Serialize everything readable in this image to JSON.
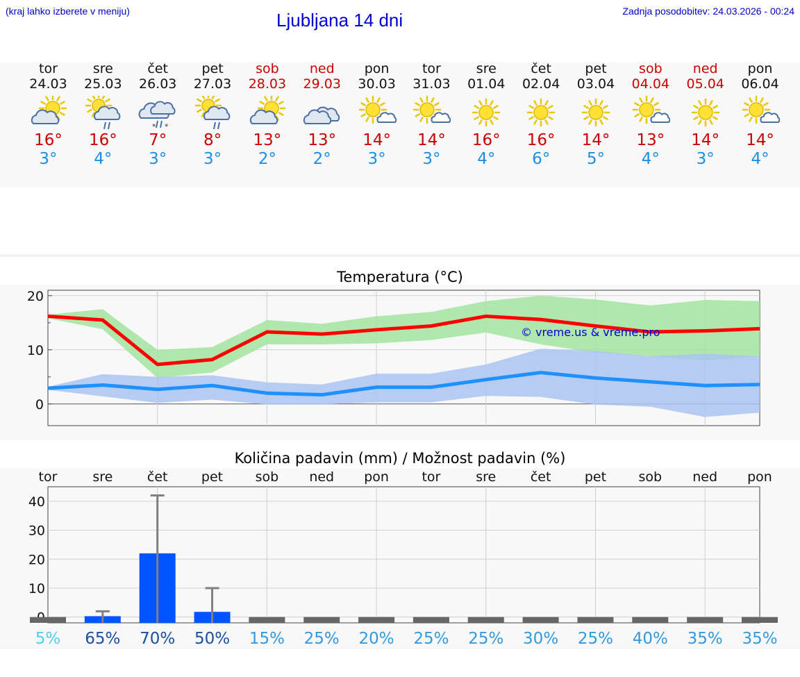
{
  "header": {
    "left_note": "(kraj lahko izberete v meniju)",
    "title": "Ljubljana 14 dni",
    "updated": "Zadnja posodobitev: 24.03.2026 - 00:24"
  },
  "colors": {
    "title_blue": "#0000d0",
    "weekend_red": "#cc0000",
    "tmax_red": "#cc0000",
    "tmin_blue": "#1a8fe6"
  },
  "days": [
    {
      "name": "tor",
      "date": "24.03",
      "weekend": false,
      "icon": "partly-cloudy-icon",
      "tmax": "16°",
      "tmin": "3°"
    },
    {
      "name": "sre",
      "date": "25.03",
      "weekend": false,
      "icon": "sun-cloud-rain-icon",
      "tmax": "16°",
      "tmin": "4°"
    },
    {
      "name": "čet",
      "date": "26.03",
      "weekend": false,
      "icon": "cloud-rain-snow-icon",
      "tmax": "7°",
      "tmin": "3°"
    },
    {
      "name": "pet",
      "date": "27.03",
      "weekend": false,
      "icon": "sun-cloud-rain-icon",
      "tmax": "8°",
      "tmin": "3°"
    },
    {
      "name": "sob",
      "date": "28.03",
      "weekend": true,
      "icon": "partly-cloudy-icon",
      "tmax": "13°",
      "tmin": "2°"
    },
    {
      "name": "ned",
      "date": "29.03",
      "weekend": true,
      "icon": "cloudy-icon",
      "tmax": "13°",
      "tmin": "2°"
    },
    {
      "name": "pon",
      "date": "30.03",
      "weekend": false,
      "icon": "mostly-sunny-icon",
      "tmax": "14°",
      "tmin": "3°"
    },
    {
      "name": "tor",
      "date": "31.03",
      "weekend": false,
      "icon": "mostly-sunny-icon",
      "tmax": "14°",
      "tmin": "3°"
    },
    {
      "name": "sre",
      "date": "01.04",
      "weekend": false,
      "icon": "sunny-icon",
      "tmax": "16°",
      "tmin": "4°"
    },
    {
      "name": "čet",
      "date": "02.04",
      "weekend": false,
      "icon": "sunny-icon",
      "tmax": "16°",
      "tmin": "6°"
    },
    {
      "name": "pet",
      "date": "03.04",
      "weekend": false,
      "icon": "sunny-icon",
      "tmax": "14°",
      "tmin": "5°"
    },
    {
      "name": "sob",
      "date": "04.04",
      "weekend": true,
      "icon": "mostly-sunny-icon",
      "tmax": "13°",
      "tmin": "4°"
    },
    {
      "name": "ned",
      "date": "05.04",
      "weekend": true,
      "icon": "sunny-icon",
      "tmax": "14°",
      "tmin": "3°"
    },
    {
      "name": "pon",
      "date": "06.04",
      "weekend": false,
      "icon": "mostly-sunny-icon",
      "tmax": "14°",
      "tmin": "4°"
    }
  ],
  "chart_data": [
    {
      "type": "line",
      "title": "Temperatura (°C)",
      "xlabel": "",
      "ylabel": "",
      "ylim": [
        -4,
        21
      ],
      "yticks": [
        0,
        10,
        20
      ],
      "ytick_labels": [
        "0",
        "10",
        "20"
      ],
      "grid": true,
      "watermark": "© vreme.us & vreme.pro",
      "categories": [
        "24.03",
        "25.03",
        "26.03",
        "27.03",
        "28.03",
        "29.03",
        "30.03",
        "31.03",
        "01.04",
        "02.04",
        "03.04",
        "04.04",
        "05.04",
        "06.04"
      ],
      "series": [
        {
          "name": "max",
          "color": "#ff0000",
          "values": [
            16.2,
            15.5,
            7.3,
            8.2,
            13.3,
            12.9,
            13.7,
            14.4,
            16.2,
            15.6,
            14.4,
            13.3,
            13.5,
            13.9
          ]
        },
        {
          "name": "max_range_high",
          "color": "#a3e4a0",
          "values": [
            16.5,
            17.5,
            10.0,
            10.5,
            15.5,
            14.8,
            16.2,
            17.0,
            19.0,
            20.0,
            19.3,
            18.2,
            19.2,
            19.0
          ]
        },
        {
          "name": "max_range_low",
          "color": "#a3e4a0",
          "values": [
            15.8,
            13.8,
            4.8,
            5.8,
            11.0,
            11.0,
            11.2,
            11.8,
            13.2,
            11.0,
            9.5,
            8.8,
            8.0,
            8.8
          ]
        },
        {
          "name": "min",
          "color": "#1e90ff",
          "values": [
            2.9,
            3.5,
            2.7,
            3.4,
            2.0,
            1.7,
            3.1,
            3.1,
            4.5,
            5.8,
            4.8,
            4.1,
            3.4,
            3.6
          ]
        },
        {
          "name": "min_range_high",
          "color": "#aac4f2",
          "values": [
            3.2,
            5.5,
            5.0,
            5.3,
            4.0,
            3.6,
            5.6,
            5.6,
            7.3,
            10.2,
            9.8,
            8.8,
            9.3,
            8.8
          ]
        },
        {
          "name": "min_range_low",
          "color": "#aac4f2",
          "values": [
            2.6,
            1.4,
            0.2,
            0.8,
            -0.1,
            -0.1,
            0.3,
            0.3,
            1.5,
            1.3,
            -0.1,
            -0.5,
            -2.4,
            -1.6
          ]
        }
      ]
    },
    {
      "type": "bar",
      "title": "Količina padavin (mm) / Možnost padavin (%)",
      "xlabel": "",
      "ylabel": "",
      "ylim": [
        -2,
        45
      ],
      "yticks": [
        0,
        10,
        20,
        30,
        40
      ],
      "ytick_labels": [
        "0",
        "10",
        "20",
        "30",
        "40"
      ],
      "grid": true,
      "categories": [
        "tor",
        "sre",
        "čet",
        "pet",
        "sob",
        "ned",
        "pon",
        "tor",
        "sre",
        "čet",
        "pet",
        "sob",
        "ned",
        "pon"
      ],
      "values": [
        0,
        0.3,
        22,
        1.8,
        0,
        0,
        0,
        0,
        0,
        0,
        0,
        0,
        0,
        0
      ],
      "error_max": [
        0,
        2,
        42,
        10,
        0,
        0,
        0,
        0,
        0,
        0,
        0,
        0,
        0,
        0
      ],
      "bar_color": "#0055ff",
      "error_color": "#808080",
      "probability": [
        "5%",
        "65%",
        "70%",
        "50%",
        "15%",
        "25%",
        "20%",
        "25%",
        "25%",
        "30%",
        "25%",
        "40%",
        "35%",
        "35%"
      ],
      "probability_colors": [
        "#55ccee",
        "#1a4fa0",
        "#1a4fa0",
        "#1a4fa0",
        "#3399dd",
        "#3399dd",
        "#3399dd",
        "#3399dd",
        "#3399dd",
        "#3399dd",
        "#3399dd",
        "#3399dd",
        "#3399dd",
        "#3399dd"
      ]
    }
  ]
}
